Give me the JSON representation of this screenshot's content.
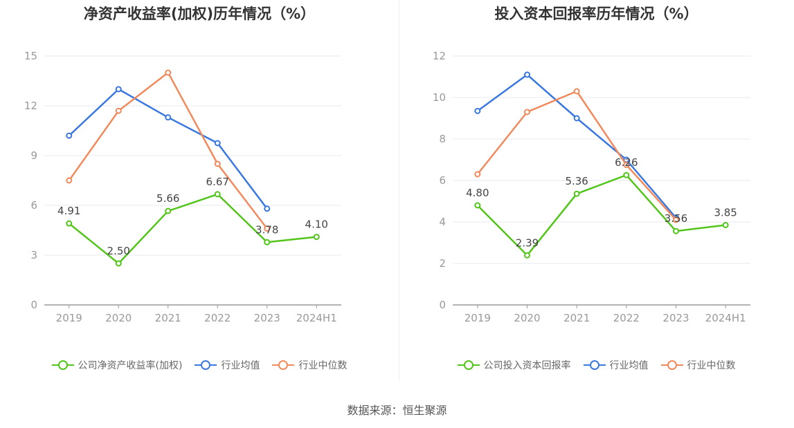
{
  "source": "数据来源：恒生聚源",
  "colors": {
    "company": "#52c41a",
    "average": "#3a78e0",
    "median": "#f08a5d",
    "grid": "#e6e8f0",
    "axis": "#999999",
    "tick_text": "#999999",
    "label_text": "#444444"
  },
  "chart_data": [
    {
      "type": "line",
      "title": "净资产收益率(加权)历年情况（%）",
      "categories": [
        "2019",
        "2020",
        "2021",
        "2022",
        "2023",
        "2024H1"
      ],
      "ylim": [
        0,
        15
      ],
      "yticks": [
        0,
        3,
        6,
        9,
        12,
        15
      ],
      "grid": true,
      "legend_position": "bottom",
      "series": [
        {
          "name": "公司净资产收益率(加权)",
          "color_key": "company",
          "values": [
            4.91,
            2.5,
            5.66,
            6.67,
            3.78,
            4.1
          ],
          "labels": [
            "4.91",
            "2.50",
            "5.66",
            "6.67",
            "3.78",
            "4.10"
          ]
        },
        {
          "name": "行业均值",
          "color_key": "average",
          "values": [
            10.2,
            13.0,
            11.3,
            9.75,
            5.8,
            null
          ]
        },
        {
          "name": "行业中位数",
          "color_key": "median",
          "values": [
            7.5,
            11.7,
            14.0,
            8.5,
            4.6,
            null
          ]
        }
      ]
    },
    {
      "type": "line",
      "title": "投入资本回报率历年情况（%）",
      "categories": [
        "2019",
        "2020",
        "2021",
        "2022",
        "2023",
        "2024H1"
      ],
      "ylim": [
        0,
        12
      ],
      "yticks": [
        0,
        2,
        4,
        6,
        8,
        10,
        12
      ],
      "grid": true,
      "legend_position": "bottom",
      "series": [
        {
          "name": "公司投入资本回报率",
          "color_key": "company",
          "values": [
            4.8,
            2.39,
            5.36,
            6.26,
            3.56,
            3.85
          ],
          "labels": [
            "4.80",
            "2.39",
            "5.36",
            "6.26",
            "3.56",
            "3.85"
          ]
        },
        {
          "name": "行业均值",
          "color_key": "average",
          "values": [
            9.35,
            11.1,
            9.0,
            7.0,
            4.2,
            null
          ]
        },
        {
          "name": "行业中位数",
          "color_key": "median",
          "values": [
            6.3,
            9.3,
            10.3,
            6.75,
            4.1,
            null
          ]
        }
      ]
    }
  ]
}
